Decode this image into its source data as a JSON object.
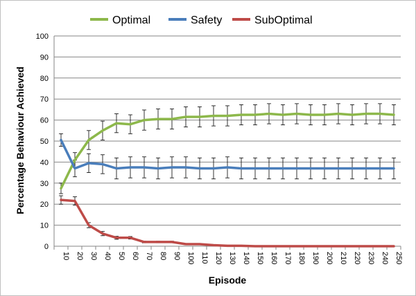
{
  "chart_data": {
    "type": "line",
    "xlabel": "Episode",
    "ylabel": "Percentage Behaviour  Achieved",
    "ylim": [
      0,
      100
    ],
    "yticks": [
      0,
      10,
      20,
      30,
      40,
      50,
      60,
      70,
      80,
      90,
      100
    ],
    "legend_position": "top",
    "grid": "horizontal",
    "x": [
      10,
      20,
      30,
      40,
      50,
      60,
      70,
      80,
      90,
      100,
      110,
      120,
      130,
      140,
      150,
      160,
      170,
      180,
      190,
      200,
      210,
      220,
      230,
      240,
      250
    ],
    "series": [
      {
        "name": "Optimal",
        "color": "#8db84b",
        "values": [
          27.5,
          41,
          50.5,
          55,
          58.5,
          58,
          60,
          60.5,
          60.5,
          61.5,
          61.5,
          62,
          62,
          62.5,
          62.5,
          63,
          62.5,
          63,
          62.5,
          62.5,
          63,
          62.5,
          63,
          63,
          62.5
        ],
        "error": [
          2.5,
          3.5,
          4.5,
          4.5,
          4.5,
          4.5,
          4.8,
          4.8,
          4.8,
          4.8,
          4.8,
          4.8,
          4.8,
          4.8,
          4.8,
          4.8,
          4.8,
          4.8,
          4.8,
          4.8,
          4.8,
          4.8,
          4.8,
          4.8,
          4.8
        ]
      },
      {
        "name": "Safety",
        "color": "#4a7ebb",
        "values": [
          50.5,
          37,
          39.5,
          39,
          37,
          37.5,
          37.5,
          37,
          37.5,
          37.5,
          37,
          37,
          37.5,
          37,
          37,
          37,
          37,
          37,
          37,
          37,
          37,
          37,
          37,
          37,
          37
        ],
        "error": [
          3,
          4,
          4.5,
          4.5,
          5,
          5,
          5,
          5,
          5,
          5,
          5,
          5,
          5,
          5,
          5,
          5,
          5,
          5,
          5,
          5,
          5,
          5,
          5,
          5,
          5
        ]
      },
      {
        "name": "SubOptimal",
        "color": "#be4b48",
        "values": [
          22,
          21.5,
          10,
          6,
          4,
          4,
          2,
          2,
          2,
          1,
          1,
          0.5,
          0.2,
          0.2,
          0,
          0,
          0,
          0,
          0,
          0,
          0,
          0,
          0,
          0,
          0
        ],
        "error": [
          2,
          2,
          1.2,
          1,
          0.7,
          0.6,
          0.4,
          0.4,
          0.4,
          0.3,
          0.3,
          0.3,
          0,
          0,
          0,
          0,
          0,
          0,
          0,
          0,
          0,
          0,
          0,
          0,
          0
        ]
      }
    ]
  }
}
